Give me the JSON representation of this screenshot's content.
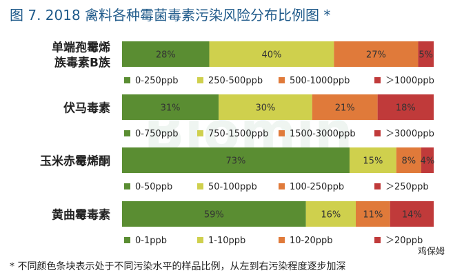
{
  "title": "图 7. 2018 禽料各种霉菌毒素污染风险分布比例图 *",
  "footnote": "* 不同颜色条块表示处于不同污染水平的样品比例，从左到右污染程度逐步加深",
  "watermark": {
    "brand": "Biomin",
    "account": "鸡保姆"
  },
  "colors": {
    "level1": "#5a8d32",
    "level2": "#cfd04d",
    "level3": "#e07a3a",
    "level4": "#c03a3a"
  },
  "chart_data": {
    "type": "bar",
    "orientation": "horizontal",
    "stacked": true,
    "title": "图 7. 2018 禽料各种霉菌毒素污染风险分布比例图 *",
    "xlim": [
      0,
      100
    ],
    "unit": "%",
    "bars": [
      {
        "category_lines": [
          "单端孢霉烯",
          "族毒素B族"
        ],
        "values": [
          28,
          40,
          27,
          5
        ],
        "labels": [
          "28%",
          "40%",
          "27%",
          "5%"
        ],
        "legend": [
          "0-250ppb",
          "250-500ppb",
          "500-1000ppb",
          "＞1000ppb"
        ]
      },
      {
        "category_lines": [
          "伏马毒素"
        ],
        "values": [
          31,
          30,
          21,
          18
        ],
        "labels": [
          "31%",
          "30%",
          "21%",
          "18%"
        ],
        "legend": [
          "0-750ppb",
          "750-1500ppb",
          "1500-3000ppb",
          "＞3000ppb"
        ]
      },
      {
        "category_lines": [
          "玉米赤霉烯酮"
        ],
        "values": [
          73,
          15,
          8,
          4
        ],
        "labels": [
          "73%",
          "15%",
          "8%",
          "4%"
        ],
        "legend": [
          "0-50ppb",
          "50-100ppb",
          "100-250ppb",
          "＞250ppb"
        ]
      },
      {
        "category_lines": [
          "黄曲霉毒素"
        ],
        "values": [
          59,
          16,
          11,
          14
        ],
        "labels": [
          "59%",
          "16%",
          "11%",
          "14%"
        ],
        "legend": [
          "0-1ppb",
          "1-10ppb",
          "10-20ppb",
          "＞20ppb"
        ]
      }
    ]
  }
}
